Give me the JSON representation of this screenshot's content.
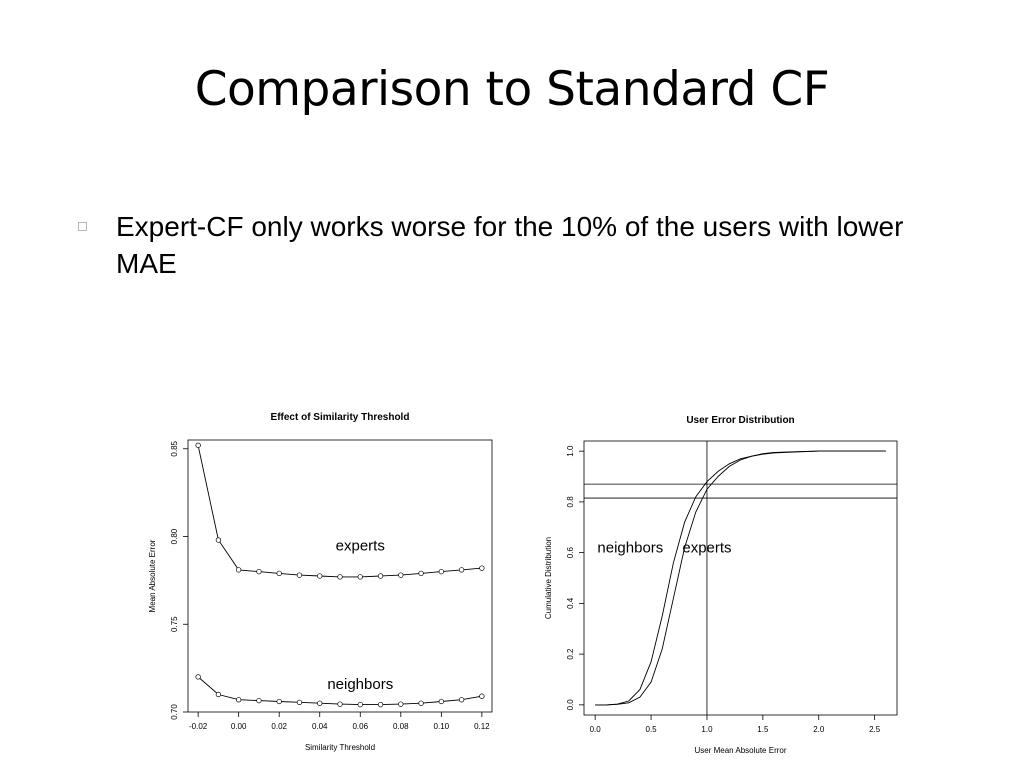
{
  "slide": {
    "title": "Comparison to Standard CF",
    "bullets": [
      {
        "text": "Expert-CF only works worse for the 10% of the users with lower MAE"
      }
    ]
  },
  "chart_data": [
    {
      "type": "line",
      "title": "Effect of Similarity Threshold",
      "xlabel": "Similarity Threshold",
      "ylabel": "Mean Absolute Error",
      "xlim": [
        -0.025,
        0.125
      ],
      "ylim": [
        0.7,
        0.855
      ],
      "xticks": [
        -0.02,
        0.0,
        0.02,
        0.04,
        0.06,
        0.08,
        0.1,
        0.12
      ],
      "xtick_labels": [
        "-0.02",
        "0.00",
        "0.02",
        "0.04",
        "0.06",
        "0.08",
        "0.10",
        "0.12"
      ],
      "yticks": [
        0.7,
        0.75,
        0.8,
        0.85
      ],
      "ytick_labels": [
        "0.70",
        "0.75",
        "0.80",
        "0.85"
      ],
      "x": [
        -0.02,
        -0.01,
        0.0,
        0.01,
        0.02,
        0.03,
        0.04,
        0.05,
        0.06,
        0.07,
        0.08,
        0.09,
        0.1,
        0.11,
        0.12
      ],
      "series": [
        {
          "name": "experts",
          "values": [
            0.852,
            0.798,
            0.781,
            0.78,
            0.779,
            0.778,
            0.7775,
            0.777,
            0.777,
            0.7775,
            0.778,
            0.779,
            0.78,
            0.781,
            0.782
          ]
        },
        {
          "name": "neighbors",
          "values": [
            0.72,
            0.71,
            0.707,
            0.7065,
            0.706,
            0.7055,
            0.705,
            0.7045,
            0.7042,
            0.7042,
            0.7045,
            0.705,
            0.706,
            0.707,
            0.709
          ]
        }
      ],
      "grid": false,
      "legend": "inline-labels"
    },
    {
      "type": "line",
      "title": "User Error Distribution",
      "xlabel": "User Mean Absolute Error",
      "ylabel": "Cumulative Distribution",
      "xlim": [
        -0.1,
        2.7
      ],
      "ylim": [
        -0.04,
        1.04
      ],
      "xticks": [
        0.0,
        0.5,
        1.0,
        1.5,
        2.0,
        2.5
      ],
      "xtick_labels": [
        "0.0",
        "0.5",
        "1.0",
        "1.5",
        "2.0",
        "2.5"
      ],
      "yticks": [
        0.0,
        0.2,
        0.4,
        0.6,
        0.8,
        1.0
      ],
      "ytick_labels": [
        "0.0",
        "0.2",
        "0.4",
        "0.6",
        "0.8",
        "1.0"
      ],
      "x": [
        0.0,
        0.1,
        0.2,
        0.3,
        0.4,
        0.5,
        0.6,
        0.7,
        0.8,
        0.9,
        1.0,
        1.1,
        1.2,
        1.3,
        1.4,
        1.5,
        1.6,
        1.8,
        2.0,
        2.2,
        2.4,
        2.6
      ],
      "series": [
        {
          "name": "neighbors",
          "values": [
            0.0,
            0.0,
            0.003,
            0.015,
            0.06,
            0.17,
            0.35,
            0.56,
            0.72,
            0.82,
            0.88,
            0.92,
            0.95,
            0.97,
            0.98,
            0.99,
            0.995,
            0.998,
            1.0,
            1.0,
            1.0,
            1.0
          ]
        },
        {
          "name": "experts",
          "values": [
            0.0,
            0.0,
            0.002,
            0.008,
            0.03,
            0.09,
            0.22,
            0.42,
            0.62,
            0.76,
            0.85,
            0.9,
            0.94,
            0.965,
            0.98,
            0.988,
            0.993,
            0.997,
            1.0,
            1.0,
            1.0,
            1.0
          ]
        }
      ],
      "reference_lines": {
        "vertical_x": [
          1.0
        ],
        "horizontal_y": [
          0.87,
          0.815
        ]
      },
      "grid": false,
      "legend": "inline-labels"
    }
  ]
}
